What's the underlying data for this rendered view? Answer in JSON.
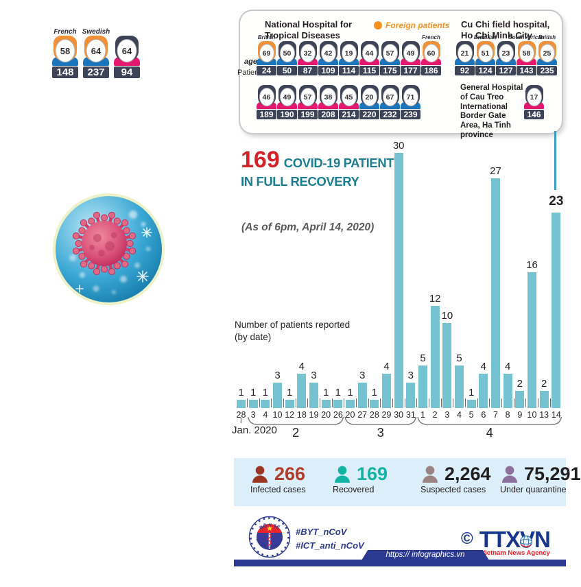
{
  "colors": {
    "bar_teal": "#75c3d1",
    "title_teal": "#1b7e93",
    "title_red": "#d2232a",
    "male_shirt_blue": "#1b75bc",
    "female_shirt_pink": "#e5186f",
    "hair_dark": "#3d4457",
    "foreign_hair_orange": "#f0913a",
    "legend_orange": "#f6921e",
    "stats_bg": "#dbeef9",
    "footer_blue": "#2b3990",
    "connector_teal": "#3e9fba"
  },
  "top_left_patients": [
    {
      "nationality": "French",
      "age": "58",
      "patient": "148",
      "gender": "male",
      "foreign": true
    },
    {
      "nationality": "Swedish",
      "age": "64",
      "patient": "237",
      "gender": "male",
      "foreign": true
    },
    {
      "nationality": "",
      "age": "64",
      "patient": "94",
      "gender": "female",
      "foreign": false
    }
  ],
  "hospital_box": {
    "age_label": "age",
    "patient_label": "Patient",
    "legend_label": "Foreign patients",
    "national_hospital": {
      "title": "National Hospital for Tropical Diseases",
      "row1": [
        {
          "nationality": "British",
          "age": "69",
          "patient": "24",
          "gender": "male",
          "foreign": true
        },
        {
          "nationality": "",
          "age": "50",
          "patient": "50",
          "gender": "male",
          "foreign": false
        },
        {
          "nationality": "",
          "age": "32",
          "patient": "87",
          "gender": "female",
          "foreign": false
        },
        {
          "nationality": "",
          "age": "42",
          "patient": "109",
          "gender": "male",
          "foreign": false
        },
        {
          "nationality": "",
          "age": "19",
          "patient": "114",
          "gender": "male",
          "foreign": false
        },
        {
          "nationality": "",
          "age": "44",
          "patient": "115",
          "gender": "female",
          "foreign": false
        },
        {
          "nationality": "",
          "age": "57",
          "patient": "175",
          "gender": "male",
          "foreign": false
        },
        {
          "nationality": "",
          "age": "49",
          "patient": "177",
          "gender": "female",
          "foreign": false
        },
        {
          "nationality": "French",
          "age": "60",
          "patient": "186",
          "gender": "female",
          "foreign": true
        }
      ],
      "row2": [
        {
          "nationality": "",
          "age": "46",
          "patient": "189",
          "gender": "female",
          "foreign": false
        },
        {
          "nationality": "",
          "age": "49",
          "patient": "190",
          "gender": "female",
          "foreign": false
        },
        {
          "nationality": "",
          "age": "57",
          "patient": "199",
          "gender": "female",
          "foreign": false
        },
        {
          "nationality": "",
          "age": "38",
          "patient": "208",
          "gender": "female",
          "foreign": false
        },
        {
          "nationality": "",
          "age": "45",
          "patient": "214",
          "gender": "female",
          "foreign": false
        },
        {
          "nationality": "",
          "age": "20",
          "patient": "220",
          "gender": "male",
          "foreign": false
        },
        {
          "nationality": "",
          "age": "67",
          "patient": "232",
          "gender": "male",
          "foreign": false
        },
        {
          "nationality": "",
          "age": "71",
          "patient": "239",
          "gender": "male",
          "foreign": false
        }
      ]
    },
    "cu_chi": {
      "title": "Cu Chi field hospital, Ho Chi Minh City",
      "row": [
        {
          "nationality": "",
          "age": "21",
          "patient": "92",
          "gender": "male",
          "foreign": false
        },
        {
          "nationality": "Brazilian",
          "age": "51",
          "patient": "124",
          "gender": "male",
          "foreign": true
        },
        {
          "nationality": "",
          "age": "23",
          "patient": "127",
          "gender": "male",
          "foreign": false
        },
        {
          "nationality": "South African",
          "age": "58",
          "patient": "143",
          "gender": "female",
          "foreign": true
        },
        {
          "nationality": "British",
          "age": "25",
          "patient": "235",
          "gender": "male",
          "foreign": true
        }
      ]
    },
    "cau_treo": {
      "title": "General Hospital of Cau Treo International Border Gate Area, Ha Tinh province",
      "row": [
        {
          "nationality": "",
          "age": "17",
          "patient": "146",
          "gender": "female",
          "foreign": false
        }
      ]
    }
  },
  "chart": {
    "title_number": "169",
    "title_rest": "COVID-19 PATIENTS",
    "title_line2": "IN FULL RECOVERY",
    "subtitle": "(As of 6pm, April 14, 2020)",
    "axis_label_line1": "Number of patients reported",
    "axis_label_line2": "(by date)"
  },
  "chart_data": {
    "type": "bar",
    "title": "169 COVID-19 PATIENTS IN FULL RECOVERY",
    "subtitle": "(As of 6pm, April 14, 2020)",
    "ylabel": "Number of patients reported (by date)",
    "xlabel": "date",
    "ylim": [
      0,
      30
    ],
    "grid": false,
    "bar_color": "#75c3d1",
    "highlight_last": true,
    "x": [
      "28",
      "3",
      "4",
      "10",
      "12",
      "18",
      "19",
      "20",
      "26",
      "20",
      "27",
      "28",
      "29",
      "30",
      "31",
      "1",
      "2",
      "3",
      "4",
      "5",
      "6",
      "7",
      "8",
      "9",
      "10",
      "13",
      "14"
    ],
    "values": [
      1,
      1,
      1,
      3,
      1,
      4,
      3,
      1,
      1,
      1,
      3,
      1,
      4,
      30,
      3,
      5,
      12,
      10,
      5,
      1,
      4,
      27,
      4,
      2,
      16,
      2,
      23
    ],
    "month_groups": [
      {
        "label": "Jan. 2020",
        "start": 0,
        "end": 0
      },
      {
        "label": "2",
        "start": 1,
        "end": 8
      },
      {
        "label": "3",
        "start": 9,
        "end": 14
      },
      {
        "label": "4",
        "start": 15,
        "end": 26
      }
    ]
  },
  "stats": [
    {
      "value": "266",
      "label": "Infected cases",
      "icon_color": "#9c3423",
      "value_color": "#b03e2b"
    },
    {
      "value": "169",
      "label": "Recovered",
      "icon_color": "#13b3a3",
      "value_color": "#13b3a3"
    },
    {
      "value": "2,264",
      "label": "Suspected cases",
      "icon_color": "#9b8384",
      "value_color": "#231f20"
    },
    {
      "value": "75,291",
      "label": "Under quarantine",
      "icon_color": "#8c6f9c",
      "value_color": "#231f20"
    }
  ],
  "footer": {
    "hashtags": [
      "#BYT_nCoV",
      "#ICT_anti_nCoV"
    ],
    "url": "https:// infographics.vn",
    "copyright": "©",
    "agency": "TTXVN",
    "agency_sub": "Vietnam News Agency",
    "moh_top": "BỘ Y TẾ",
    "moh_bottom": "MINISTRY OF HEALTH"
  }
}
